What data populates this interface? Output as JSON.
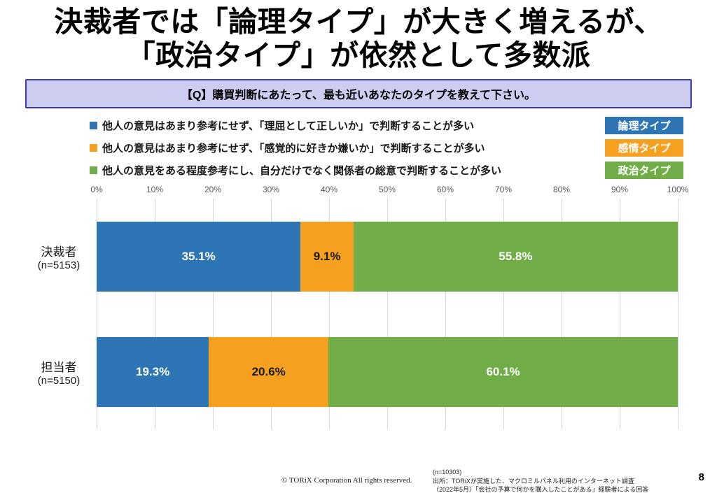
{
  "title": {
    "line1": "決裁者では「論理タイプ」が大きく増えるが、",
    "line2": "「政治タイプ」が依然として多数派"
  },
  "question": "【Q】購買判断にあたって、最も近いあなたのタイプを教えて下さい。",
  "legend": [
    {
      "text": "他人の意見はあまり参考にせず、「理屈として正しいか」で判断することが多い",
      "badge": "論理タイプ",
      "color": "#2E75B6"
    },
    {
      "text": "他人の意見はあまり参考にせず、「感覚的に好きか嫌いか」で判断することが多い",
      "badge": "感情タイプ",
      "color": "#F5A01E"
    },
    {
      "text": "他人の意見をある程度参考にし、自分だけでなく関係者の総意で判断することが多い",
      "badge": "政治タイプ",
      "color": "#70AD47"
    }
  ],
  "chart_data": {
    "type": "bar",
    "orientation": "horizontal",
    "stacked": true,
    "xlim": [
      0,
      100
    ],
    "x_ticks": [
      "0%",
      "10%",
      "20%",
      "30%",
      "40%",
      "50%",
      "60%",
      "70%",
      "80%",
      "90%",
      "100%"
    ],
    "grid": true,
    "value_suffix": "%",
    "categories": [
      {
        "label": "決裁者",
        "sub": "(n=5153)"
      },
      {
        "label": "担当者",
        "sub": "(n=5150)"
      }
    ],
    "series": [
      {
        "name": "論理タイプ",
        "color": "#2E75B6",
        "text_color": "#FFFFFF",
        "values": [
          35.1,
          19.3
        ]
      },
      {
        "name": "感情タイプ",
        "color": "#F5A01E",
        "text_color": "#1A1A1A",
        "values": [
          9.1,
          20.6
        ]
      },
      {
        "name": "政治タイプ",
        "color": "#70AD47",
        "text_color": "#FFFFFF",
        "values": [
          55.8,
          60.1
        ]
      }
    ]
  },
  "footer": {
    "copyright": "© TORiX Corporation All rights reserved.",
    "n_total": "(n=10303)",
    "source_line1": "出所：TORiXが実施した、マクロミルパネル利用のインターネット調査",
    "source_line2": "（2022年5月）「会社の予算で何かを購入したことがある」経験者による回答",
    "page_number": "8"
  }
}
